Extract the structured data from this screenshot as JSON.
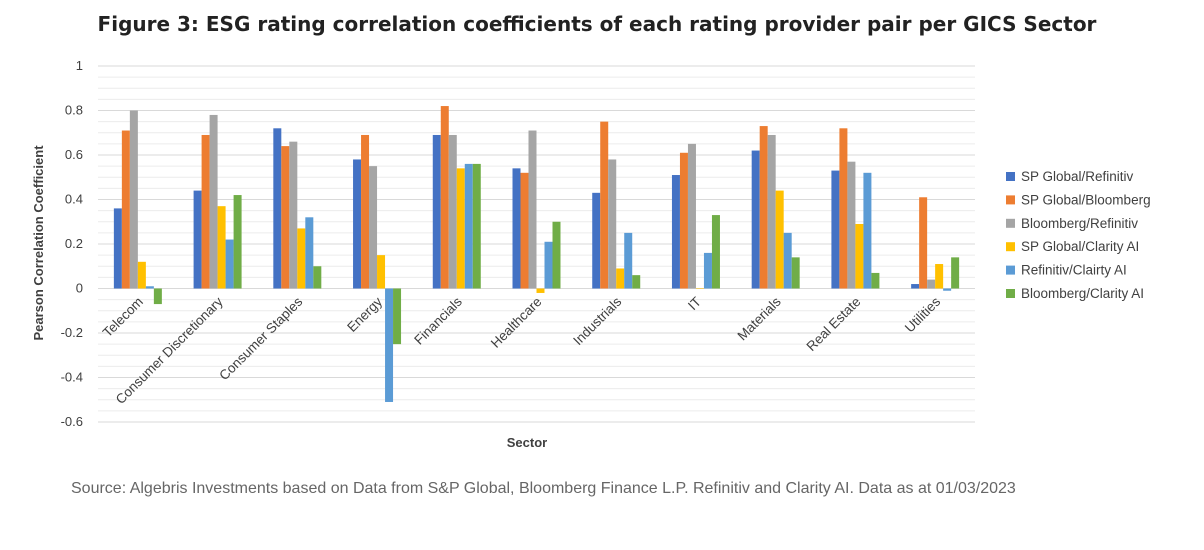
{
  "chart_data": {
    "type": "bar",
    "title": "Figure 3: ESG rating correlation coefficients of each rating provider pair per GICS Sector",
    "xlabel": "Sector",
    "ylabel": "Pearson Correlation Coefficient",
    "ylim": [
      -0.6,
      1
    ],
    "yticks": [
      "1",
      "0.8",
      "0.6",
      "0.4",
      "0.2",
      "0",
      "-0.2",
      "-0.4",
      "-0.6"
    ],
    "grid": true,
    "legend_position": "right",
    "categories": [
      "Telecom",
      "Consumer Discretionary",
      "Consumer Staples",
      "Energy",
      "Financials",
      "Healthcare",
      "Industrials",
      "IT",
      "Materials",
      "Real Estate",
      "Utilities"
    ],
    "series": [
      {
        "name": "SP Global/Refinitiv",
        "color": "#4472C4",
        "values": [
          0.36,
          0.44,
          0.72,
          0.58,
          0.69,
          0.54,
          0.43,
          0.51,
          0.62,
          0.53,
          0.02
        ]
      },
      {
        "name": "SP Global/Bloomberg",
        "color": "#ED7D31",
        "values": [
          0.71,
          0.69,
          0.64,
          0.69,
          0.82,
          0.52,
          0.75,
          0.61,
          0.73,
          0.72,
          0.41
        ]
      },
      {
        "name": "Bloomberg/Refinitiv",
        "color": "#A5A5A5",
        "values": [
          0.8,
          0.78,
          0.66,
          0.55,
          0.69,
          0.71,
          0.58,
          0.65,
          0.69,
          0.57,
          0.04
        ]
      },
      {
        "name": "SP Global/Clarity AI",
        "color": "#FFC000",
        "values": [
          0.12,
          0.37,
          0.27,
          0.15,
          0.54,
          -0.02,
          0.09,
          0.0,
          0.44,
          0.29,
          0.11
        ]
      },
      {
        "name": "Refinitiv/Clairty AI",
        "color": "#5B9BD5",
        "values": [
          0.01,
          0.22,
          0.32,
          -0.51,
          0.56,
          0.21,
          0.25,
          0.16,
          0.25,
          0.52,
          -0.01
        ]
      },
      {
        "name": "Bloomberg/Clarity AI",
        "color": "#70AD47",
        "values": [
          -0.07,
          0.42,
          0.1,
          -0.25,
          0.56,
          0.3,
          0.06,
          0.33,
          0.14,
          0.07,
          0.14
        ]
      }
    ]
  },
  "source": "Source: Algebris Investments based on Data from S&P Global, Bloomberg Finance L.P. Refinitiv and Clarity AI. Data as at 01/03/2023"
}
